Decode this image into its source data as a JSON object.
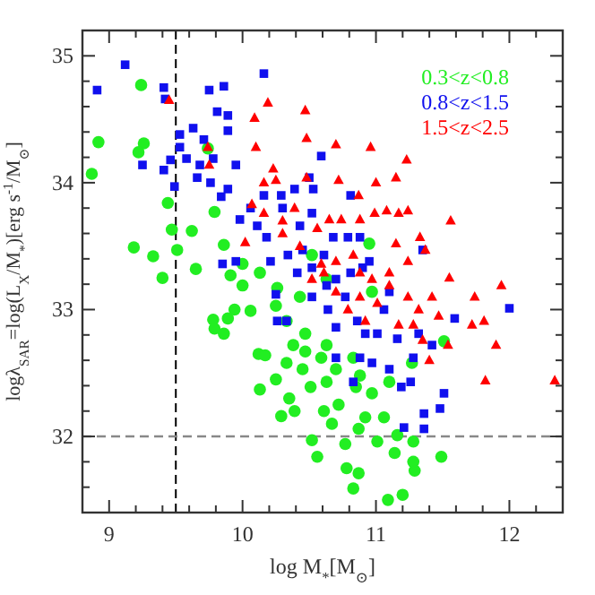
{
  "chart_data": {
    "type": "scatter",
    "xlabel": "log M$_{*}$[M$_{⊙}$]",
    "ylabel": "logλ$_{SAR}$=log(L$_{X}$/M$_{*}$)[erg s$^{-1}$/M$_{⊙}$]",
    "xlim": [
      8.8,
      12.4
    ],
    "ylim": [
      31.4,
      35.2
    ],
    "xticks": [
      {
        "value": 9.0,
        "label": "9"
      },
      {
        "value": 9.2,
        "label": null
      },
      {
        "value": 9.4,
        "label": null
      },
      {
        "value": 9.6,
        "label": null
      },
      {
        "value": 9.8,
        "label": null
      },
      {
        "value": 10.0,
        "label": "10"
      },
      {
        "value": 10.2,
        "label": null
      },
      {
        "value": 10.4,
        "label": null
      },
      {
        "value": 10.6,
        "label": null
      },
      {
        "value": 10.8,
        "label": null
      },
      {
        "value": 11.0,
        "label": "11"
      },
      {
        "value": 11.2,
        "label": null
      },
      {
        "value": 11.4,
        "label": null
      },
      {
        "value": 11.6,
        "label": null
      },
      {
        "value": 11.8,
        "label": null
      },
      {
        "value": 12.0,
        "label": "12"
      },
      {
        "value": 12.2,
        "label": null
      }
    ],
    "yticks": [
      {
        "value": 31.6,
        "label": null
      },
      {
        "value": 31.8,
        "label": null
      },
      {
        "value": 32.0,
        "label": "32"
      },
      {
        "value": 32.2,
        "label": null
      },
      {
        "value": 32.4,
        "label": null
      },
      {
        "value": 32.6,
        "label": null
      },
      {
        "value": 32.8,
        "label": null
      },
      {
        "value": 33.0,
        "label": "33"
      },
      {
        "value": 33.2,
        "label": null
      },
      {
        "value": 33.4,
        "label": null
      },
      {
        "value": 33.6,
        "label": null
      },
      {
        "value": 33.8,
        "label": null
      },
      {
        "value": 34.0,
        "label": "34"
      },
      {
        "value": 34.2,
        "label": null
      },
      {
        "value": 34.4,
        "label": null
      },
      {
        "value": 34.6,
        "label": null
      },
      {
        "value": 34.8,
        "label": null
      },
      {
        "value": 35.0,
        "label": "35"
      }
    ],
    "grid": false,
    "legend": "top right",
    "ref_lines": [
      {
        "axis": "x",
        "value": 9.5,
        "color": "#000000",
        "line_style": "dashed"
      },
      {
        "axis": "y",
        "value": 32,
        "color": "#888888",
        "line_style": "dashed"
      }
    ],
    "series": [
      {
        "name": "0.3<z<0.8",
        "color": "#22ee22",
        "marker": "circle",
        "x": [
          8.87,
          8.92,
          9.24,
          9.26,
          9.22,
          9.185,
          9.33,
          9.4,
          9.44,
          9.47,
          9.51,
          9.62,
          9.65,
          9.74,
          9.79,
          9.86,
          9.91,
          9.94,
          10.0,
          9.78,
          9.79,
          9.86,
          9.89,
          10.0,
          10.06,
          10.13,
          10.12,
          10.17,
          10.13,
          10.25,
          10.25,
          10.26,
          10.33,
          10.35,
          10.38,
          10.43,
          10.47,
          10.45,
          10.51,
          10.52,
          10.56,
          10.59,
          10.63,
          10.61,
          10.67,
          10.72,
          10.77,
          10.78,
          10.83,
          10.85,
          10.87,
          10.87,
          10.83,
          10.92,
          10.97,
          10.95,
          11.01,
          11.06,
          11.09,
          11.14,
          11.16,
          11.2,
          11.27,
          11.28,
          11.29,
          11.28,
          11.51,
          11.49,
          10.63,
          10.97,
          10.52,
          10.63,
          10.47,
          10.33,
          10.29,
          10.39,
          10.88,
          11.1,
          10.7
        ],
        "values": [
          34.07,
          34.32,
          34.77,
          34.31,
          34.24,
          33.49,
          33.42,
          33.25,
          33.84,
          33.63,
          33.47,
          33.62,
          33.32,
          34.27,
          33.77,
          33.51,
          33.27,
          33.0,
          33.36,
          32.92,
          32.85,
          32.81,
          32.93,
          33.19,
          32.99,
          33.29,
          32.65,
          32.64,
          32.37,
          33.03,
          32.45,
          33.17,
          32.91,
          32.3,
          32.72,
          33.1,
          32.81,
          32.53,
          32.39,
          31.97,
          31.84,
          32.62,
          32.43,
          32.2,
          32.1,
          32.25,
          31.94,
          31.75,
          32.62,
          32.39,
          32.06,
          31.71,
          31.59,
          32.15,
          32.34,
          33.52,
          31.96,
          32.15,
          31.5,
          31.87,
          32.01,
          31.54,
          32.58,
          31.96,
          31.73,
          31.8,
          32.75,
          31.84,
          33.24,
          33.14,
          33.43,
          32.72,
          32.67,
          32.58,
          32.16,
          32.2,
          32.48,
          32.43,
          32.53
        ]
      },
      {
        "name": "0.8<z<1.5",
        "color": "#1010ee",
        "marker": "square",
        "x": [
          8.91,
          9.12,
          9.41,
          9.42,
          9.25,
          9.41,
          9.46,
          9.49,
          9.53,
          9.53,
          9.58,
          9.63,
          9.68,
          9.75,
          9.78,
          9.81,
          9.86,
          9.89,
          9.89,
          9.71,
          9.66,
          9.76,
          9.84,
          9.89,
          9.95,
          9.98,
          9.95,
          9.85,
          10.06,
          10.11,
          10.16,
          10.18,
          10.21,
          10.25,
          10.26,
          10.3,
          10.39,
          10.5,
          10.53,
          10.59,
          10.52,
          10.43,
          10.45,
          10.34,
          10.41,
          10.52,
          10.61,
          10.68,
          10.52,
          10.63,
          10.7,
          10.64,
          10.7,
          10.77,
          10.81,
          10.88,
          10.9,
          10.86,
          10.92,
          10.97,
          11.01,
          11.06,
          11.1,
          11.16,
          11.1,
          11.19,
          11.26,
          11.28,
          11.32,
          11.35,
          11.36,
          11.36,
          11.21,
          11.48,
          11.51,
          11.59,
          12.0,
          11.42,
          10.7,
          10.88,
          10.83,
          10.79,
          10.33,
          10.29,
          10.16,
          10.81,
          10.95
        ],
        "values": [
          34.73,
          34.93,
          34.75,
          34.66,
          34.14,
          34.1,
          34.18,
          33.97,
          34.38,
          34.28,
          34.19,
          34.43,
          34.14,
          34.73,
          34.19,
          34.56,
          34.76,
          34.53,
          34.41,
          34.34,
          34.04,
          34.0,
          33.89,
          33.95,
          34.14,
          33.71,
          33.38,
          33.36,
          33.8,
          33.66,
          34.86,
          33.57,
          33.38,
          33.12,
          32.91,
          33.8,
          33.95,
          34.04,
          33.95,
          34.21,
          33.76,
          33.66,
          33.47,
          33.43,
          33.29,
          33.33,
          33.43,
          33.57,
          33.1,
          33.19,
          33.24,
          33.0,
          32.86,
          33.1,
          33.29,
          33.57,
          33.33,
          32.91,
          32.81,
          32.58,
          32.81,
          33.0,
          33.14,
          32.77,
          32.53,
          32.39,
          32.43,
          32.62,
          32.81,
          33.47,
          32.18,
          32.06,
          32.07,
          32.22,
          32.34,
          32.93,
          33.01,
          32.72,
          32.62,
          32.62,
          32.43,
          33.57,
          32.91,
          33.9,
          33.9,
          33.9,
          33.38
        ]
      },
      {
        "name": "1.5<z<2.5",
        "color": "#ff0000",
        "marker": "triangle",
        "x": [
          9.45,
          9.75,
          9.74,
          10.09,
          10.19,
          10.1,
          10.23,
          10.25,
          10.47,
          10.48,
          10.48,
          10.7,
          10.72,
          10.96,
          11.0,
          11.15,
          11.23,
          10.87,
          10.07,
          10.02,
          10.16,
          10.3,
          10.39,
          10.43,
          10.56,
          10.65,
          10.74,
          10.88,
          10.99,
          11.08,
          11.17,
          11.24,
          11.15,
          11.33,
          11.56,
          11.37,
          11.24,
          11.1,
          10.97,
          10.83,
          10.7,
          10.61,
          10.7,
          10.88,
          11.01,
          11.1,
          11.24,
          11.32,
          11.47,
          11.55,
          11.74,
          11.94,
          11.72,
          11.81,
          11.9,
          11.82,
          12.34,
          11.54,
          11.4,
          11.35,
          11.17,
          10.92,
          10.79,
          10.88,
          10.59,
          10.52,
          10.3,
          11.28,
          11.42,
          10.16
        ],
        "values": [
          34.65,
          34.14,
          34.28,
          34.51,
          34.63,
          34.28,
          34.11,
          34.02,
          34.57,
          34.35,
          34.04,
          34.3,
          34.02,
          34.28,
          34.0,
          34.04,
          34.18,
          33.9,
          33.83,
          33.53,
          33.76,
          33.7,
          33.8,
          33.5,
          33.64,
          33.71,
          33.71,
          33.71,
          33.76,
          33.78,
          33.76,
          33.78,
          33.52,
          33.57,
          33.7,
          33.47,
          33.38,
          33.29,
          33.24,
          33.43,
          33.38,
          33.29,
          33.14,
          33.1,
          33.05,
          33.19,
          33.1,
          33.0,
          32.95,
          33.25,
          33.1,
          33.19,
          32.88,
          32.91,
          32.72,
          32.44,
          32.44,
          32.72,
          32.6,
          32.76,
          32.88,
          32.91,
          33.0,
          33.29,
          33.36,
          33.24,
          33.6,
          32.88,
          33.1,
          34.0
        ]
      }
    ]
  }
}
